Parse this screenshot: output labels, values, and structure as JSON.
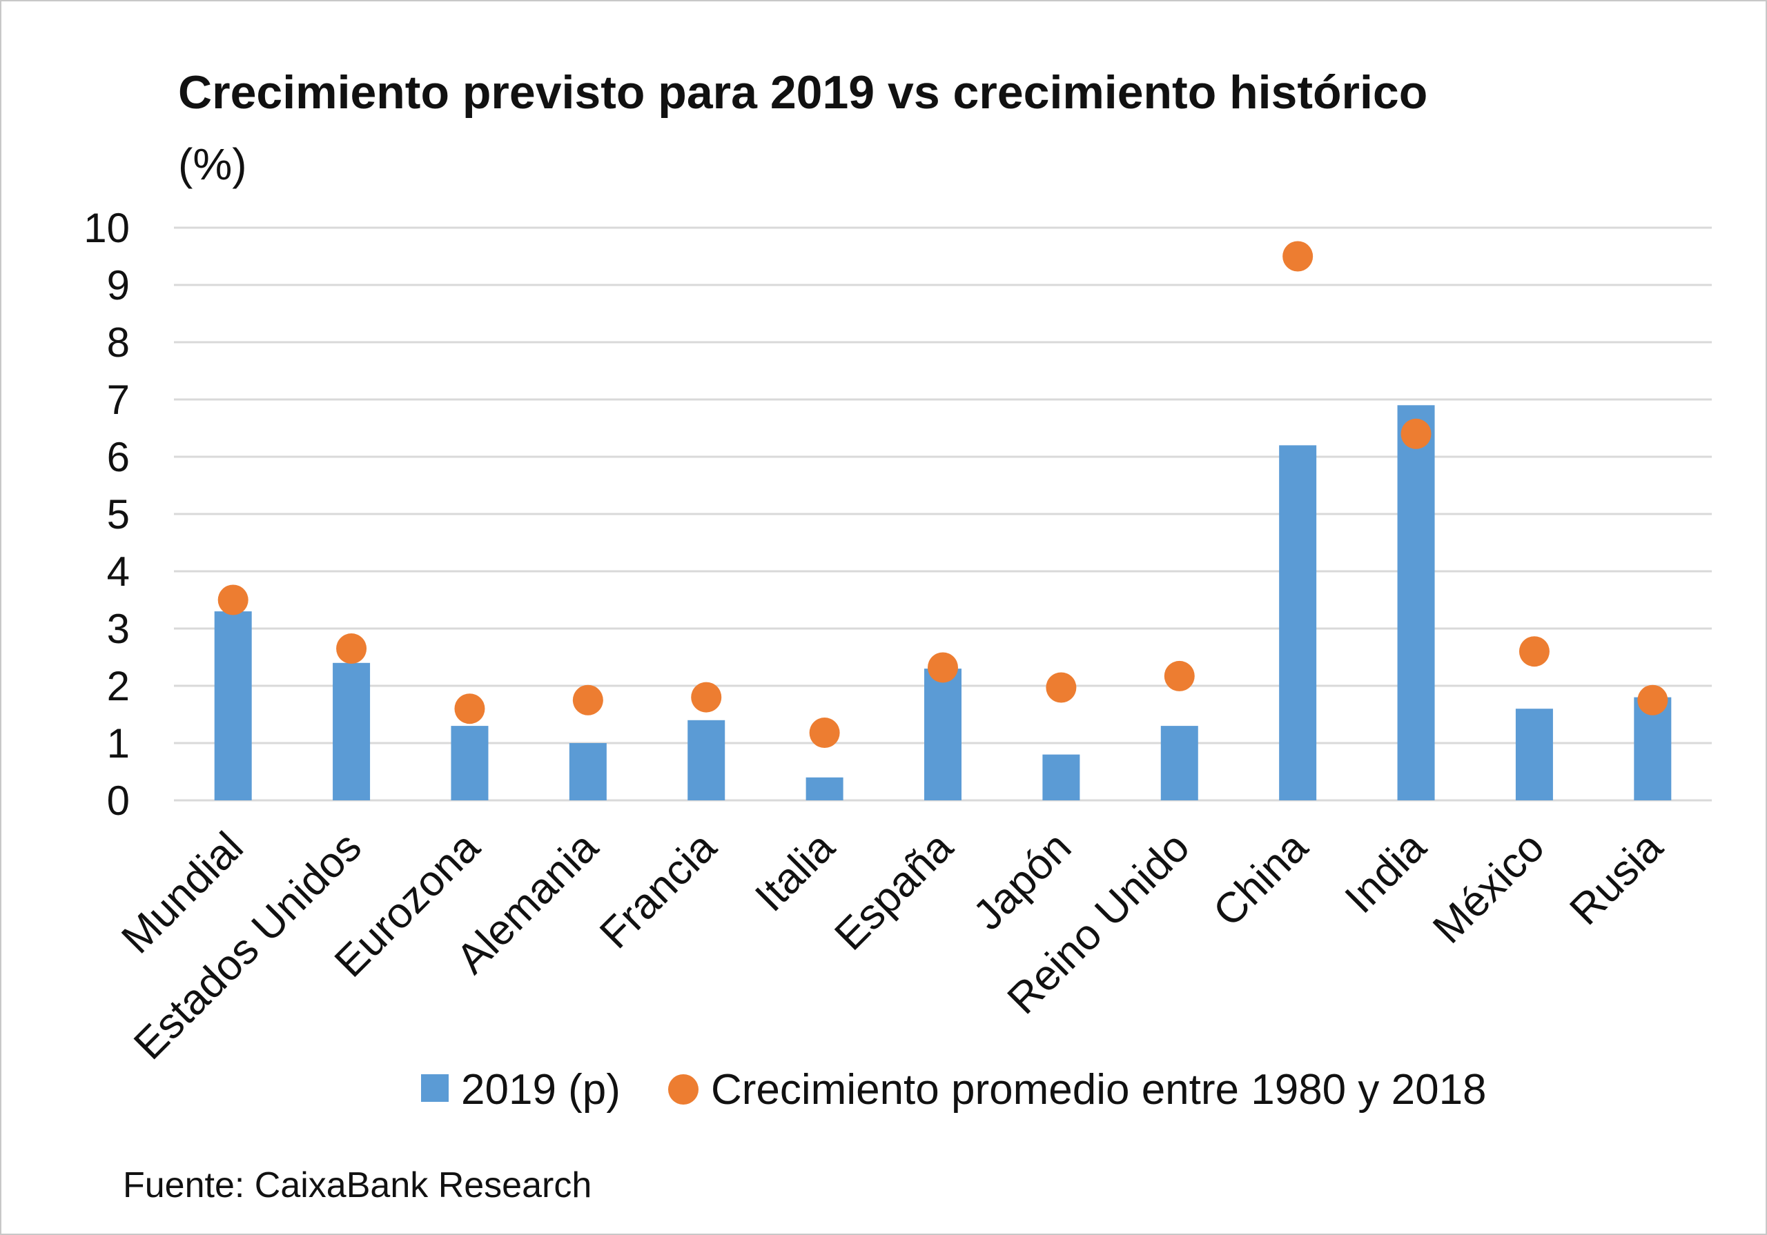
{
  "chart_data": {
    "type": "bar",
    "title": "Crecimiento previsto para 2019 vs crecimiento histórico",
    "subtitle": "(%)",
    "xlabel": "",
    "ylabel": "",
    "ylim": [
      0,
      10
    ],
    "yticks": [
      "0",
      "1",
      "2",
      "3",
      "4",
      "5",
      "6",
      "7",
      "8",
      "9",
      "10"
    ],
    "grid": true,
    "legend_position": "bottom",
    "categories": [
      "Mundial",
      "Estados Unidos",
      "Eurozona",
      "Alemania",
      "Francia",
      "Italia",
      "España",
      "Japón",
      "Reino Unido",
      "China",
      "India",
      "México",
      "Rusia"
    ],
    "series": [
      {
        "name": "2019 (p)",
        "mark": "bar",
        "color": "#5b9bd5",
        "values": [
          3.3,
          2.4,
          1.3,
          1.0,
          1.4,
          0.4,
          2.3,
          0.8,
          1.3,
          6.2,
          6.9,
          1.6,
          1.8
        ]
      },
      {
        "name": "Crecimiento promedio entre 1980 y 2018",
        "mark": "point",
        "color": "#ed7d31",
        "values": [
          3.5,
          2.65,
          1.6,
          1.75,
          1.8,
          1.18,
          2.32,
          1.97,
          2.17,
          9.5,
          6.4,
          2.6,
          1.75
        ]
      }
    ],
    "source": "Fuente: CaixaBank Research"
  },
  "colors": {
    "bar": "#5b9bd5",
    "point": "#ed7d31",
    "grid": "#d9d9d9",
    "frame": "#c8c8c8"
  }
}
